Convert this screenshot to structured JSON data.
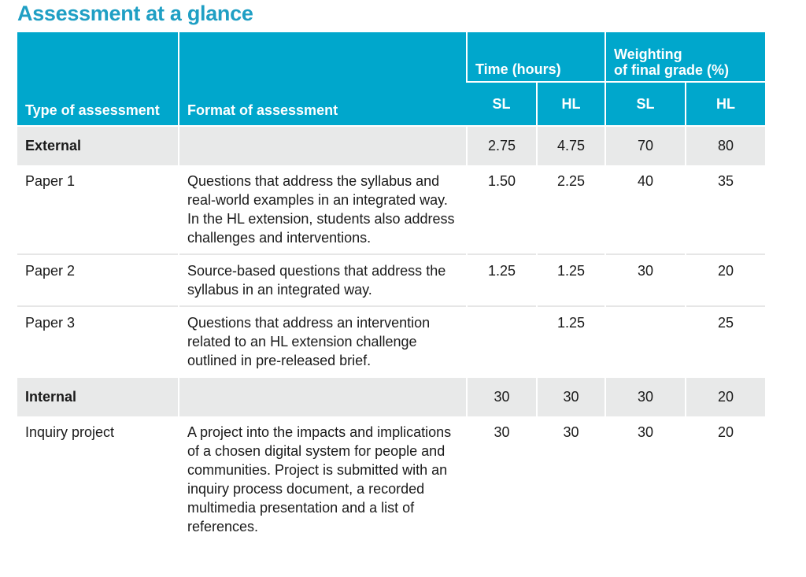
{
  "title": "Assessment at a glance",
  "header": {
    "time_hours": "Time (hours)",
    "weighting_line1": "Weighting",
    "weighting_line2": "of final grade (%)",
    "type_of_assessment": "Type of assessment",
    "format_of_assessment": "Format of assessment",
    "sl": "SL",
    "hl": "HL"
  },
  "rows": [
    {
      "type": "External",
      "format": "",
      "time_sl": "2.75",
      "time_hl": "4.75",
      "weight_sl": "70",
      "weight_hl": "80"
    },
    {
      "type": "Paper 1",
      "format": "Questions that address the syllabus and real-world examples in an integrated way. In the HL extension, students also address challenges and interventions.",
      "time_sl": "1.50",
      "time_hl": "2.25",
      "weight_sl": "40",
      "weight_hl": "35"
    },
    {
      "type": "Paper 2",
      "format": "Source-based questions that address the syllabus in an integrated way.",
      "time_sl": "1.25",
      "time_hl": "1.25",
      "weight_sl": "30",
      "weight_hl": "20"
    },
    {
      "type": "Paper 3",
      "format": "Questions that address an intervention related to an HL extension challenge outlined in pre-released brief.",
      "time_sl": "",
      "time_hl": "1.25",
      "weight_sl": "",
      "weight_hl": "25"
    },
    {
      "type": "Internal",
      "format": "",
      "time_sl": "30",
      "time_hl": "30",
      "weight_sl": "30",
      "weight_hl": "20"
    },
    {
      "type": "Inquiry project",
      "format": "A project into the impacts and implications of a chosen digital system for people and communities. Project is submitted with an inquiry process document, a recorded multimedia presentation and a list of references.",
      "time_sl": "30",
      "time_hl": "30",
      "weight_sl": "30",
      "weight_hl": "20"
    }
  ]
}
